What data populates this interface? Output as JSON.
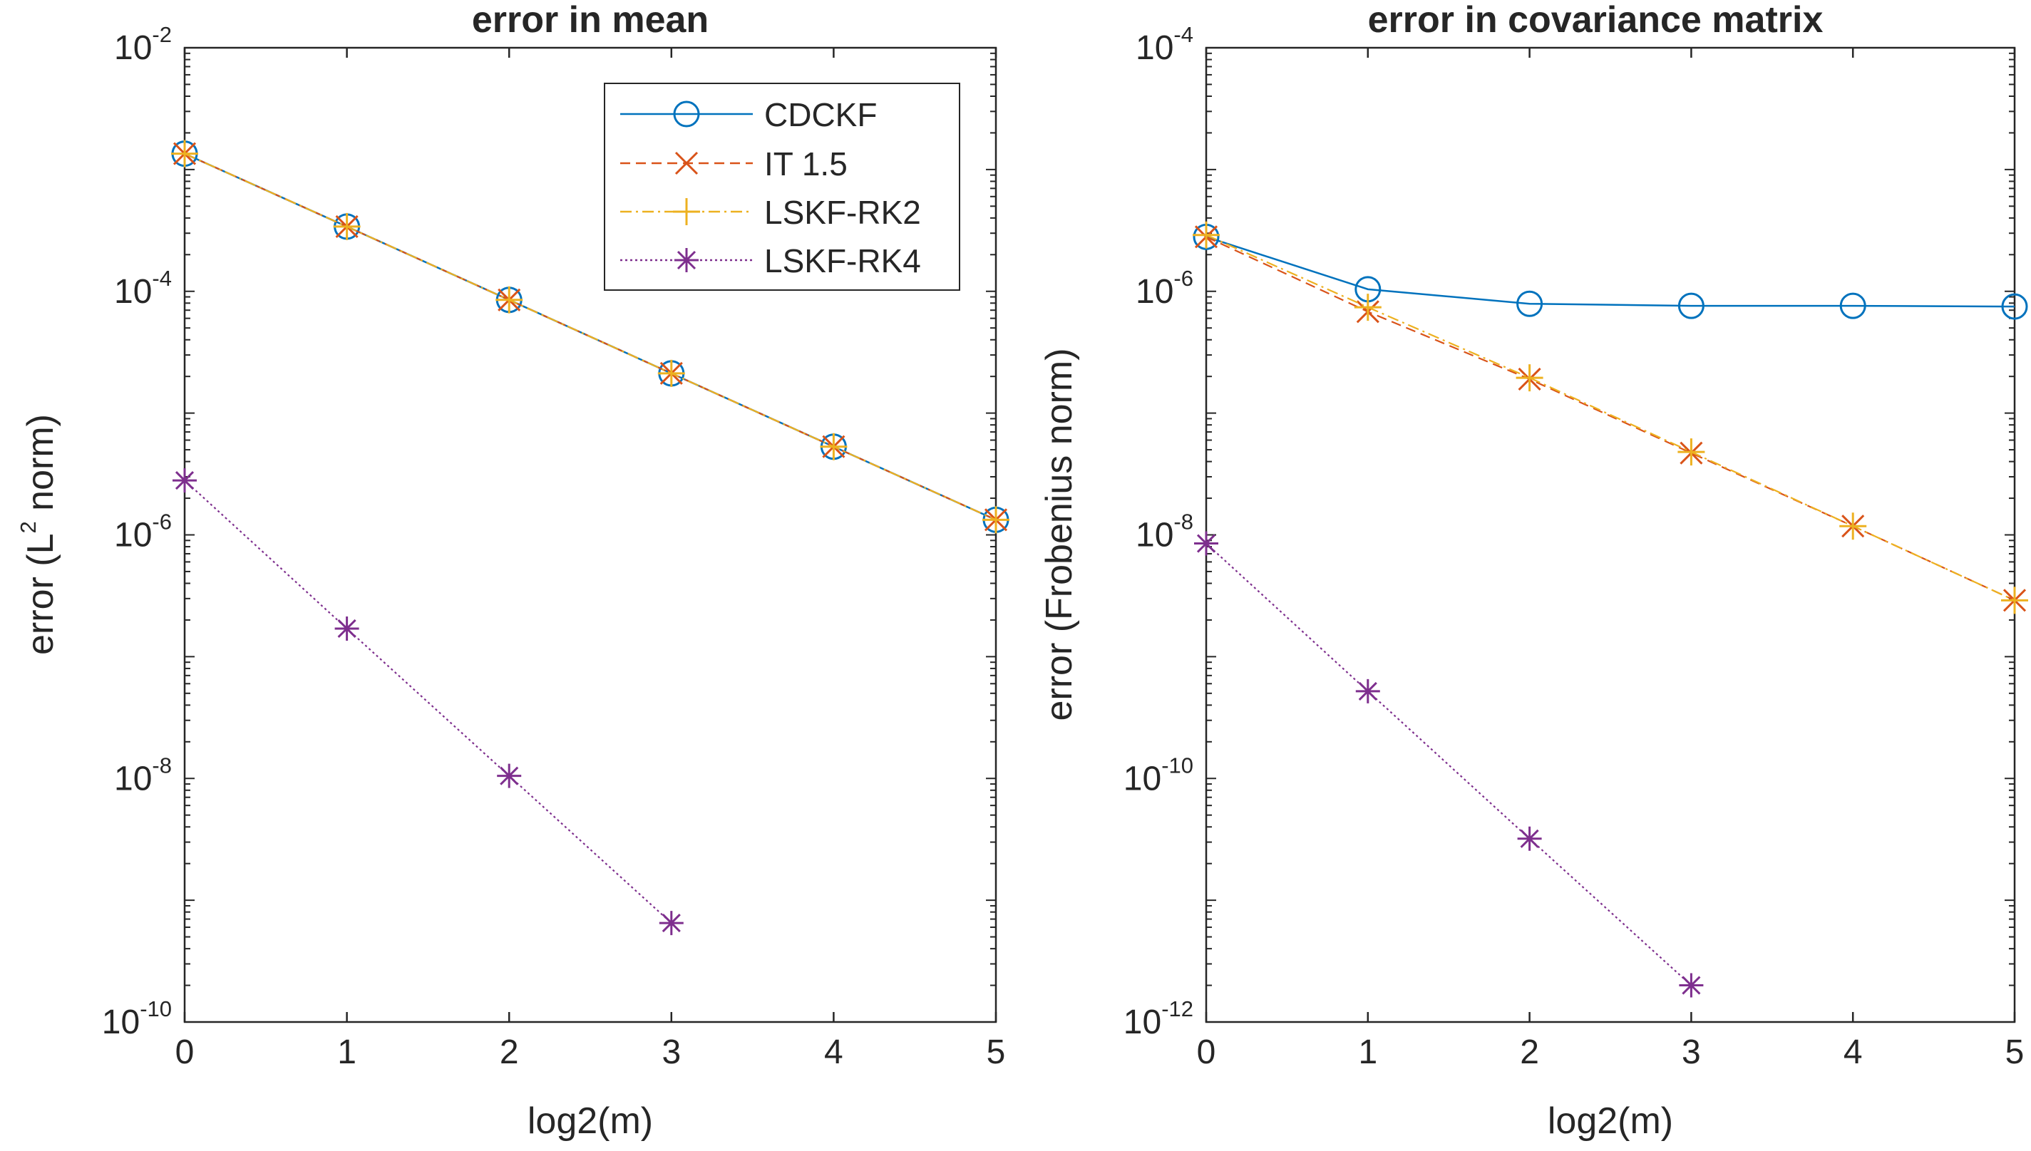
{
  "chart_data": [
    {
      "type": "line",
      "title": "error in mean",
      "xlabel": "log2(m)",
      "ylabel_parts": [
        "error (L",
        "2",
        " norm)"
      ],
      "x_ticks": [
        "0",
        "1",
        "2",
        "3",
        "4",
        "5"
      ],
      "xlim": [
        0,
        5
      ],
      "yscale": "log",
      "ylim": [
        1e-10,
        0.01
      ],
      "y_ticks": [
        {
          "base": "10",
          "exp": "-2"
        },
        {
          "base": "10",
          "exp": "-4"
        },
        {
          "base": "10",
          "exp": "-6"
        },
        {
          "base": "10",
          "exp": "-8"
        },
        {
          "base": "10",
          "exp": "-10"
        }
      ],
      "grid": false,
      "legend_position": "top-right",
      "series": [
        {
          "name": "CDCKF",
          "color": "#0072bd",
          "line": "solid",
          "marker": "circle",
          "x": [
            0,
            1,
            2,
            3,
            4,
            5
          ],
          "y": [
            0.00135,
            0.00034,
            8.5e-05,
            2.12e-05,
            5.3e-06,
            1.33e-06
          ]
        },
        {
          "name": "IT 1.5",
          "color": "#d95319",
          "line": "dashed",
          "marker": "x",
          "x": [
            0,
            1,
            2,
            3,
            4,
            5
          ],
          "y": [
            0.00135,
            0.00034,
            8.5e-05,
            2.12e-05,
            5.3e-06,
            1.33e-06
          ]
        },
        {
          "name": "LSKF-RK2",
          "color": "#edb120",
          "line": "dashdot",
          "marker": "plus",
          "x": [
            0,
            1,
            2,
            3,
            4,
            5
          ],
          "y": [
            0.00135,
            0.00034,
            8.5e-05,
            2.12e-05,
            5.3e-06,
            1.33e-06
          ]
        },
        {
          "name": "LSKF-RK4",
          "color": "#7e2f8e",
          "line": "dotted",
          "marker": "asterisk",
          "x": [
            0,
            1,
            2,
            3
          ],
          "y": [
            2.8e-06,
            1.7e-07,
            1.05e-08,
            6.5e-10
          ]
        }
      ]
    },
    {
      "type": "line",
      "title": "error in covariance matrix",
      "xlabel": "log2(m)",
      "ylabel": "error (Frobenius norm)",
      "x_ticks": [
        "0",
        "1",
        "2",
        "3",
        "4",
        "5"
      ],
      "xlim": [
        0,
        5
      ],
      "yscale": "log",
      "ylim": [
        1e-12,
        0.0001
      ],
      "y_ticks": [
        {
          "base": "10",
          "exp": "-4"
        },
        {
          "base": "10",
          "exp": "-6"
        },
        {
          "base": "10",
          "exp": "-8"
        },
        {
          "base": "10",
          "exp": "-10"
        },
        {
          "base": "10",
          "exp": "-12"
        }
      ],
      "grid": false,
      "series": [
        {
          "name": "CDCKF",
          "color": "#0072bd",
          "line": "solid",
          "marker": "circle",
          "x": [
            0,
            1,
            2,
            3,
            4,
            5
          ],
          "y": [
            2.8e-06,
            1.04e-06,
            7.9e-07,
            7.6e-07,
            7.6e-07,
            7.5e-07
          ]
        },
        {
          "name": "IT 1.5",
          "color": "#d95319",
          "line": "dashed",
          "marker": "x",
          "x": [
            0,
            1,
            2,
            3,
            4,
            5
          ],
          "y": [
            2.8e-06,
            6.8e-07,
            1.9e-07,
            4.7e-08,
            1.18e-08,
            2.9e-09
          ]
        },
        {
          "name": "LSKF-RK2",
          "color": "#edb120",
          "line": "dashdot",
          "marker": "plus",
          "x": [
            0,
            1,
            2,
            3,
            4,
            5
          ],
          "y": [
            2.9e-06,
            7.4e-07,
            1.95e-07,
            4.8e-08,
            1.18e-08,
            2.9e-09
          ]
        },
        {
          "name": "LSKF-RK4",
          "color": "#7e2f8e",
          "line": "dotted",
          "marker": "asterisk",
          "x": [
            0,
            1,
            2,
            3
          ],
          "y": [
            8.5e-09,
            5.2e-10,
            3.2e-11,
            2e-12
          ]
        }
      ]
    }
  ]
}
